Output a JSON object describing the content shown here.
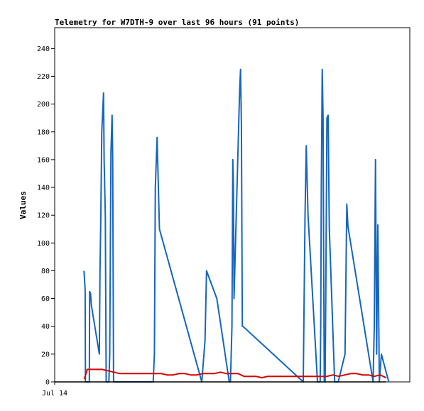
{
  "chart_data": {
    "type": "line",
    "title": "Telemetry for W7DTH-9 over last 96 hours (91 points)",
    "xlabel": "",
    "ylabel": "Values",
    "x_tick_labels": [
      "Jul 14"
    ],
    "ylim": [
      0,
      255
    ],
    "yticks": [
      0,
      20,
      40,
      60,
      80,
      100,
      120,
      140,
      160,
      180,
      200,
      220,
      240
    ],
    "x_range_hours": [
      0,
      96
    ],
    "grid": false,
    "legend": "none",
    "series": [
      {
        "color": "#1565c0",
        "x": [
          9.9,
          10.3,
          10.4,
          11.7,
          11.8,
          12.1,
          12.4,
          15.1,
          15.3,
          15.6,
          15.9,
          16.5,
          16.7,
          17.1,
          17.4,
          18.3,
          18.6,
          19.0,
          19.4,
          19.6,
          19.9,
          20.6,
          33.3,
          33.7,
          34.0,
          34.6,
          35.4,
          49.7,
          50.8,
          51.3,
          54.8,
          59.0,
          59.4,
          59.9,
          60.2,
          60.4,
          60.6,
          62.5,
          62.8,
          63.1,
          63.4,
          63.6,
          84.0,
          84.2,
          84.6,
          85.0,
          85.6,
          88.8,
          89.7,
          89.9,
          90.1,
          90.4,
          90.7,
          90.9,
          91.1,
          91.4,
          91.6,
          92.0,
          92.4,
          92.8,
          94.6,
          95.8,
          98.1,
          98.7,
          99.1,
          107.6,
          108.0,
          108.4,
          108.8,
          109.2,
          109.7,
          110.4,
          112.9
        ],
        "y": [
          80,
          66,
          0,
          0,
          65,
          64,
          55,
          20,
          80,
          120,
          180,
          208,
          160,
          120,
          0,
          0,
          20,
          165,
          192,
          160,
          0,
          0,
          0,
          20,
          140,
          176,
          110,
          0,
          30,
          80,
          60,
          0,
          0,
          40,
          160,
          140,
          60,
          210,
          225,
          185,
          40,
          40,
          0,
          40,
          120,
          170,
          120,
          0,
          0,
          40,
          140,
          225,
          190,
          80,
          0,
          0,
          60,
          190,
          192,
          110,
          0,
          0,
          20,
          128,
          112,
          0,
          40,
          160,
          20,
          113,
          0,
          20,
          0
        ]
      },
      {
        "color": "#d40000",
        "x": [
          10.0,
          11.0,
          12.0,
          14.0,
          16.0,
          18.0,
          20.0,
          22.0,
          25.0,
          29.0,
          33.0,
          36.0,
          38.0,
          40.0,
          42.0,
          44.0,
          46.0,
          48.0,
          50.0,
          52.0,
          54.0,
          56.0,
          58.0,
          60.0,
          62.0,
          64.0,
          66.0,
          68.0,
          70.0,
          72.0,
          74.0,
          76.0,
          78.0,
          80.0,
          82.0,
          84.0,
          86.0,
          88.0,
          89.0,
          90.0,
          92.0,
          94.0,
          96.0,
          98.0,
          100.0,
          102.0,
          104.0,
          106.0,
          108.0,
          110.0,
          112.0
        ],
        "y": [
          2,
          9,
          9,
          9,
          9,
          8,
          7,
          6,
          6,
          6,
          6,
          6,
          5,
          5,
          6,
          6,
          5,
          5,
          6,
          6,
          6,
          7,
          6,
          6,
          6,
          4,
          4,
          4,
          3,
          4,
          4,
          4,
          4,
          4,
          4,
          4,
          4,
          4,
          4,
          4,
          4,
          5,
          4,
          5,
          6,
          6,
          5,
          5,
          4,
          5,
          3
        ]
      },
      {
        "color": "#000000",
        "x": [
          0,
          112
        ],
        "y": [
          0,
          0
        ]
      }
    ]
  }
}
